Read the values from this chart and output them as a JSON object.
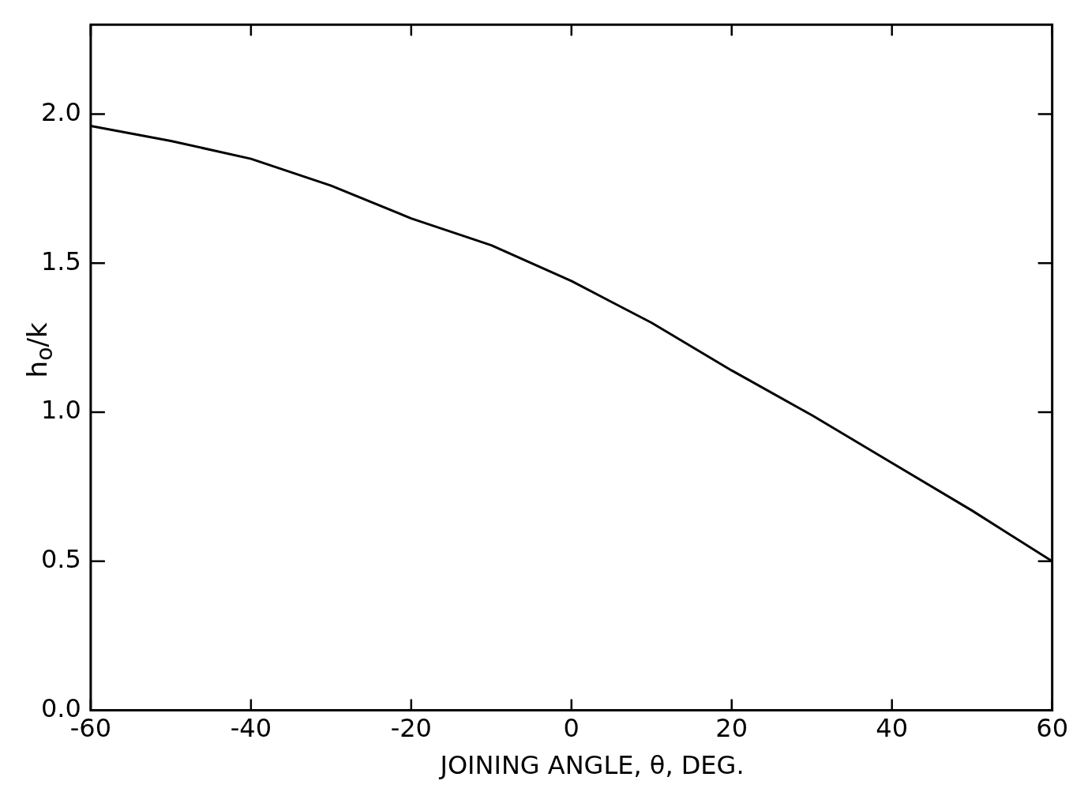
{
  "chart_data": {
    "type": "line",
    "xlabel": "JOINING ANGLE, θ, DEG.",
    "ylabel": "h$_{o}$/k",
    "x": [
      -60,
      -50,
      -40,
      -30,
      -20,
      -10,
      0,
      10,
      20,
      30,
      40,
      50,
      60
    ],
    "series": [
      {
        "color": "#000000",
        "values": [
          1.96,
          1.91,
          1.85,
          1.76,
          1.65,
          1.56,
          1.44,
          1.3,
          1.14,
          0.99,
          0.83,
          0.67,
          0.5
        ]
      }
    ],
    "xlim": [
      -60,
      60
    ],
    "xticks": [
      -60,
      -40,
      -20,
      0,
      20,
      40,
      60
    ],
    "ylim": [
      0,
      2.3
    ],
    "yticks": [
      {
        "value": 0,
        "label": "0.0"
      },
      {
        "value": 0.5,
        "label": "0.5"
      },
      {
        "value": 1,
        "label": "1.0"
      },
      {
        "value": 1.5,
        "label": "1.5"
      },
      {
        "value": 2,
        "label": "2.0"
      }
    ],
    "grid": false,
    "legend": false,
    "marker": "none",
    "line_style": "solid"
  }
}
